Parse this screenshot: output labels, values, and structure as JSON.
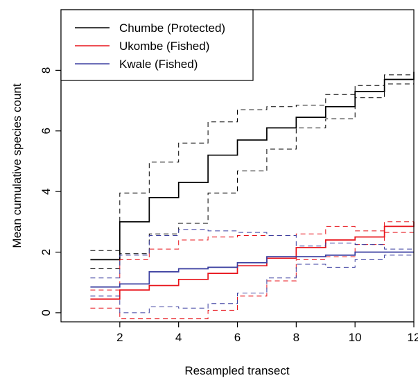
{
  "chart_data": {
    "type": "line",
    "step": true,
    "xlabel": "Resampled transect",
    "ylabel": "Mean cumulative species count",
    "xlim": [
      0,
      12
    ],
    "ylim": [
      -0.3,
      10
    ],
    "x_ticks": [
      2,
      4,
      6,
      8,
      10,
      12
    ],
    "y_ticks": [
      0,
      2,
      4,
      6,
      8
    ],
    "legend": {
      "placement": "top-left",
      "entries": [
        {
          "label": "Chumbe (Protected)",
          "color": "#000000"
        },
        {
          "label": "Ukombe (Fished)",
          "color": "#e8141b"
        },
        {
          "label": "Kwale (Fished)",
          "color": "#3b3fa0"
        }
      ]
    },
    "x": [
      1,
      2,
      3,
      4,
      5,
      6,
      7,
      8,
      9,
      10,
      11,
      12
    ],
    "series": [
      {
        "name": "Chumbe (Protected)",
        "color": "#000000",
        "mean": [
          1.75,
          3.0,
          3.8,
          4.3,
          5.2,
          5.7,
          6.1,
          6.45,
          6.8,
          7.3,
          7.7,
          7.95
        ],
        "upper": [
          2.05,
          3.95,
          4.97,
          5.6,
          6.3,
          6.7,
          6.8,
          6.85,
          7.2,
          7.5,
          7.85,
          8.05
        ],
        "lower": [
          1.45,
          1.95,
          2.6,
          2.95,
          3.95,
          4.68,
          5.4,
          6.1,
          6.4,
          7.1,
          7.55,
          7.7
        ]
      },
      {
        "name": "Ukombe (Fished)",
        "color": "#e8141b",
        "mean": [
          0.45,
          0.75,
          0.9,
          1.1,
          1.3,
          1.55,
          1.8,
          2.15,
          2.4,
          2.5,
          2.85,
          3.0
        ],
        "upper": [
          0.75,
          1.75,
          2.1,
          2.4,
          2.5,
          2.55,
          2.55,
          2.6,
          2.85,
          2.7,
          3.0,
          3.1
        ],
        "lower": [
          0.15,
          -0.2,
          -0.2,
          -0.2,
          0.08,
          0.55,
          1.05,
          1.75,
          1.85,
          2.25,
          2.65,
          2.8
        ]
      },
      {
        "name": "Kwale (Fished)",
        "color": "#3b3fa0",
        "mean": [
          0.85,
          0.95,
          1.35,
          1.45,
          1.5,
          1.65,
          1.85,
          1.85,
          1.9,
          2.0,
          2.0,
          2.0
        ],
        "upper": [
          1.15,
          1.9,
          2.55,
          2.75,
          2.7,
          2.65,
          2.55,
          2.2,
          2.3,
          2.25,
          2.1,
          2.15
        ],
        "lower": [
          0.55,
          0.0,
          0.2,
          0.15,
          0.3,
          0.65,
          1.15,
          1.6,
          1.5,
          1.75,
          1.9,
          1.9
        ]
      }
    ]
  }
}
